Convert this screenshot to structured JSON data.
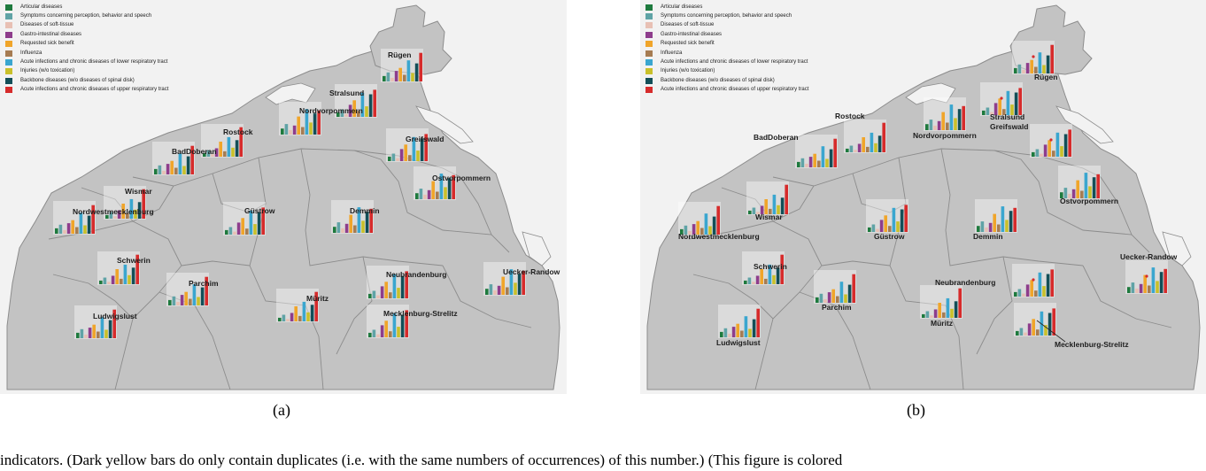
{
  "legend": [
    {
      "label": "Articular diseases",
      "color": "#1e7a3e"
    },
    {
      "label": "Symptoms concerning perception, behavior and speech",
      "color": "#5fa3a6"
    },
    {
      "label": "Diseases of soft-tissue",
      "color": "#e8c0b4"
    },
    {
      "label": "Gastro-intestinal diseases",
      "color": "#8e3d8c"
    },
    {
      "label": "Requested sick benefit",
      "color": "#f0a52a"
    },
    {
      "label": "Influenza",
      "color": "#a67c52"
    },
    {
      "label": "Acute infections and chronic diseases of lower respiratory tract",
      "color": "#3aa6cf"
    },
    {
      "label": "Injuries (w/o toxication)",
      "color": "#c9c02a"
    },
    {
      "label": "Backbone diseases (w/o diseases of spinal disk)",
      "color": "#134f58"
    },
    {
      "label": "Acute infections and chronic diseases of upper respiratory tract",
      "color": "#d62b2b"
    }
  ],
  "districts": [
    {
      "name": "Rügen"
    },
    {
      "name": "Stralsund"
    },
    {
      "name": "Nordvorpommern"
    },
    {
      "name": "Rostock"
    },
    {
      "name": "BadDoberan"
    },
    {
      "name": "Greifswald"
    },
    {
      "name": "Ostvorpommern"
    },
    {
      "name": "Wismar"
    },
    {
      "name": "Nordwestmecklenburg"
    },
    {
      "name": "Güstrow"
    },
    {
      "name": "Demmin"
    },
    {
      "name": "Schwerin"
    },
    {
      "name": "Parchim"
    },
    {
      "name": "Neubrandenburg"
    },
    {
      "name": "Uecker-Randow"
    },
    {
      "name": "Müritz"
    },
    {
      "name": "Ludwigslust"
    },
    {
      "name": "Mecklenburg-Strelitz"
    }
  ],
  "captions": {
    "a": "(a)",
    "b": "(b)"
  },
  "bottom_text": "indicators. (Dark yellow bars do only contain duplicates (i.e. with the same numbers of occurrences) of this number.) (This figure is colored",
  "colors": {
    "map_fill": "#c3c3c3",
    "border": "#8c8c8c",
    "background": "#f2f2f2"
  }
}
